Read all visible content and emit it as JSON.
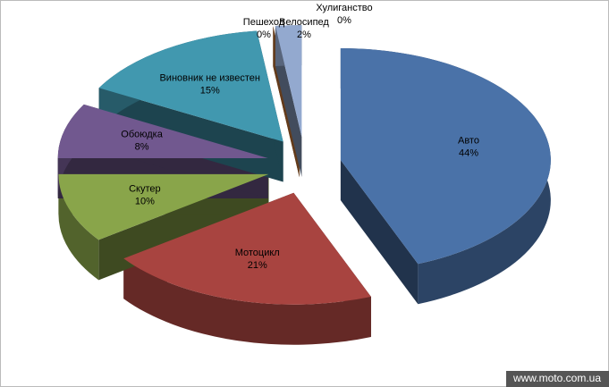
{
  "chart_data": {
    "type": "pie3d",
    "categories": [
      "Авто",
      "Мотоцикл",
      "Скутер",
      "Обоюдка",
      "Виновник не известен",
      "Пешеход",
      "Велосипед",
      "Хулиганство"
    ],
    "values": [
      44,
      21,
      10,
      8,
      15,
      0,
      2,
      0
    ],
    "value_labels": [
      "44%",
      "21%",
      "10%",
      "8%",
      "15%",
      "0%",
      "2%",
      "0%"
    ],
    "colors": [
      "#4a72a8",
      "#a84440",
      "#89a54a",
      "#71588f",
      "#4198af",
      "#db843d",
      "#93a9cf",
      "#b9cd96"
    ]
  },
  "watermark": "www.moto.com.ua"
}
